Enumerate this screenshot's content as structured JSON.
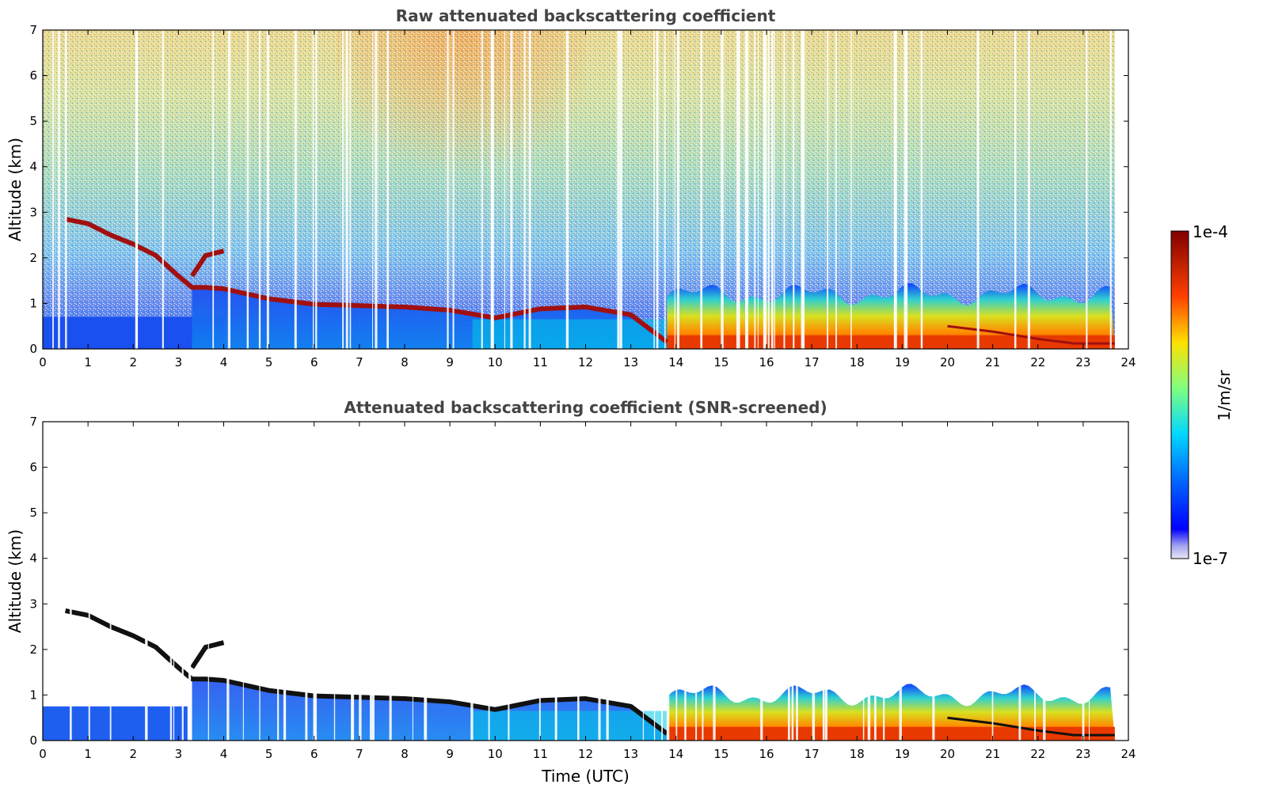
{
  "chart_data": [
    {
      "type": "heatmap",
      "title": "Raw attenuated backscattering coefficient",
      "xlabel": "",
      "ylabel": "Altitude (km)",
      "xlim": [
        0,
        24
      ],
      "ylim": [
        0,
        7
      ],
      "xticks": [
        "0",
        "1",
        "2",
        "3",
        "4",
        "5",
        "6",
        "7",
        "8",
        "9",
        "10",
        "11",
        "12",
        "13",
        "14",
        "15",
        "16",
        "17",
        "18",
        "19",
        "20",
        "21",
        "22",
        "23",
        "24"
      ],
      "yticks": [
        "0",
        "1",
        "2",
        "3",
        "4",
        "5",
        "6",
        "7"
      ],
      "data_end_hour": 23.7,
      "layer_height_km": {
        "hours": [
          0.5,
          1.0,
          1.5,
          2.0,
          2.5,
          3.0,
          3.3,
          3.6,
          4.0,
          5.0,
          6.0,
          7.0,
          8.0,
          9.0,
          10.0,
          11.0,
          12.0,
          13.0,
          13.8
        ],
        "heights": [
          2.85,
          2.75,
          2.5,
          2.3,
          2.05,
          1.6,
          1.35,
          1.35,
          1.32,
          1.1,
          0.98,
          0.95,
          0.92,
          0.85,
          0.68,
          0.88,
          0.92,
          0.75,
          0.15
        ]
      },
      "upper_branch_km": {
        "hours": [
          3.3,
          3.6,
          4.0
        ],
        "heights": [
          1.6,
          2.05,
          2.15
        ]
      },
      "lower_layer_km": {
        "hours": [
          20.0,
          21.0,
          22.0,
          22.8,
          23.7
        ],
        "heights": [
          0.5,
          0.38,
          0.22,
          0.12,
          0.12
        ]
      }
    },
    {
      "type": "heatmap",
      "title": "Attenuated backscattering coefficient (SNR-screened)",
      "xlabel": "Time (UTC)",
      "ylabel": "Altitude (km)",
      "xlim": [
        0,
        24
      ],
      "ylim": [
        0,
        7
      ],
      "xticks": [
        "0",
        "1",
        "2",
        "3",
        "4",
        "5",
        "6",
        "7",
        "8",
        "9",
        "10",
        "11",
        "12",
        "13",
        "14",
        "15",
        "16",
        "17",
        "18",
        "19",
        "20",
        "21",
        "22",
        "23",
        "24"
      ],
      "yticks": [
        "0",
        "1",
        "2",
        "3",
        "4",
        "5",
        "6",
        "7"
      ],
      "data_end_hour": 23.7
    }
  ],
  "colorbar": {
    "label": "1/m/sr",
    "max_label": "1e-4",
    "min_label": "1e-7",
    "colors": [
      "#e8e8f8",
      "#0000ff",
      "#0080ff",
      "#00e0ff",
      "#80ff80",
      "#ffe000",
      "#ff4000",
      "#800000"
    ]
  }
}
